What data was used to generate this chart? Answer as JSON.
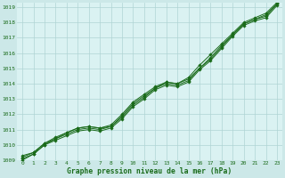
{
  "xlabel": "Graphe pression niveau de la mer (hPa)",
  "xlim": [
    -0.5,
    23.5
  ],
  "ylim": [
    1009,
    1019.3
  ],
  "yticks": [
    1009,
    1010,
    1011,
    1012,
    1013,
    1014,
    1015,
    1016,
    1017,
    1018,
    1019
  ],
  "xticks": [
    0,
    1,
    2,
    3,
    4,
    5,
    6,
    7,
    8,
    9,
    10,
    11,
    12,
    13,
    14,
    15,
    16,
    17,
    18,
    19,
    20,
    21,
    22,
    23
  ],
  "background_color": "#cce8e8",
  "plot_bg_color": "#daf2f2",
  "line_color": "#1a6b1a",
  "grid_color": "#b0d4d4",
  "series": [
    [
      1009.2,
      1009.5,
      1010.1,
      1010.4,
      1010.7,
      1011.0,
      1011.1,
      1011.0,
      1011.2,
      1011.8,
      1012.6,
      1013.1,
      1013.7,
      1014.0,
      1013.9,
      1014.2,
      1015.0,
      1015.6,
      1016.4,
      1017.2,
      1017.9,
      1018.2,
      1018.4,
      1019.2
    ],
    [
      1009.3,
      1009.5,
      1010.1,
      1010.5,
      1010.8,
      1011.1,
      1011.2,
      1011.1,
      1011.3,
      1012.0,
      1012.8,
      1013.3,
      1013.8,
      1014.1,
      1014.0,
      1014.4,
      1015.2,
      1015.9,
      1016.6,
      1017.3,
      1018.0,
      1018.3,
      1018.6,
      1019.3
    ],
    [
      1009.1,
      1009.4,
      1010.0,
      1010.3,
      1010.6,
      1010.9,
      1011.0,
      1010.9,
      1011.1,
      1011.7,
      1012.5,
      1013.0,
      1013.6,
      1013.9,
      1013.8,
      1014.1,
      1014.9,
      1015.5,
      1016.3,
      1017.1,
      1017.8,
      1018.1,
      1018.3,
      1019.1
    ],
    [
      1009.0,
      1009.4,
      1010.0,
      1010.4,
      1010.8,
      1011.1,
      1011.2,
      1011.1,
      1011.2,
      1011.9,
      1012.7,
      1013.2,
      1013.7,
      1014.1,
      1014.0,
      1014.3,
      1015.0,
      1015.7,
      1016.5,
      1017.2,
      1017.9,
      1018.2,
      1018.5,
      1019.2
    ]
  ]
}
